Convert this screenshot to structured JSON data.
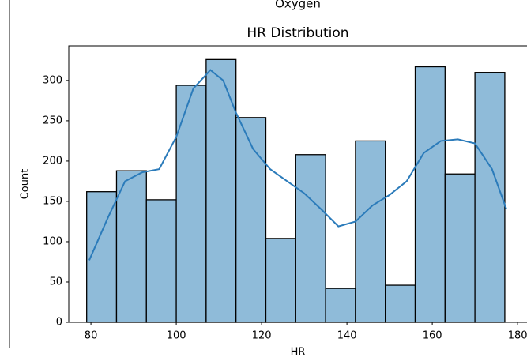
{
  "chart_data": {
    "type": "histogram",
    "title": "HR Distribution",
    "subtitle": "Oxygen",
    "x_label": "HR",
    "y_label": "Count",
    "bins": [
      79,
      86,
      93,
      100,
      107,
      114,
      121,
      128,
      135,
      142,
      149,
      156,
      163,
      170,
      177
    ],
    "counts": [
      162,
      188,
      152,
      294,
      326,
      254,
      104,
      208,
      42,
      225,
      46,
      317,
      184,
      310
    ],
    "color": "#8fbbd9",
    "edgecolor": "#000000",
    "kde": {
      "color": "#2b7bba",
      "x": [
        79.6,
        84,
        88,
        92,
        96,
        100,
        104,
        108,
        111,
        114,
        118,
        122,
        126,
        130,
        134,
        138,
        142,
        146,
        150,
        154,
        158,
        162,
        166,
        170,
        174,
        177.4
      ],
      "y": [
        77,
        130,
        175,
        186,
        190,
        230,
        290,
        313,
        300,
        260,
        215,
        190,
        175,
        160,
        140,
        119,
        125,
        145,
        158,
        175,
        210,
        225,
        227,
        222,
        190,
        140
      ]
    },
    "xlim": [
      74.8,
      182.2
    ],
    "ylim": [
      0,
      343
    ],
    "xticks": [
      80,
      100,
      120,
      140,
      160,
      180
    ],
    "yticks": [
      0,
      50,
      100,
      150,
      200,
      250,
      300
    ]
  }
}
